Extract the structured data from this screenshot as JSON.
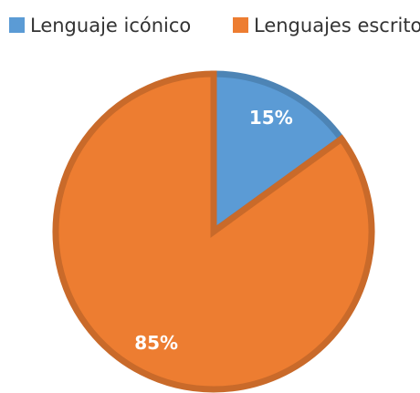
{
  "chart_data": {
    "type": "pie",
    "categories": [
      "Lenguaje icónico",
      "Lenguajes escrito"
    ],
    "values": [
      15,
      85
    ],
    "value_labels": [
      "15%",
      "85%"
    ],
    "colors": [
      "#5b9bd5",
      "#ed7d31"
    ],
    "legend": "top"
  }
}
